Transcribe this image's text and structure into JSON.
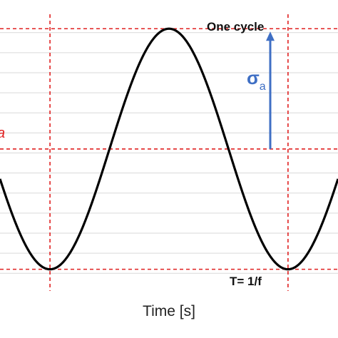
{
  "chart_data": {
    "type": "line",
    "title": "",
    "xlabel": "Time [s]",
    "ylabel": "",
    "grid": true,
    "x_unit": "cycle",
    "xlim": [
      -0.21,
      1.21
    ],
    "ylim": [
      -1.18,
      1.12
    ],
    "series": [
      {
        "style": "sine",
        "amplitude": 1.0,
        "mean": 0.0,
        "period": 1.0,
        "phase_of_peak": 0.5,
        "x_range": [
          -0.21,
          1.21
        ]
      }
    ],
    "reference_lines": {
      "horizontal": [
        1.0,
        0.0,
        -1.0
      ],
      "vertical": [
        0.0,
        1.0
      ]
    },
    "annotations": {
      "cycle": "One cycle",
      "period": "T= 1/f",
      "amplitude_symbol": "σ",
      "amplitude_subscript": "a",
      "left_clipped_text": "a"
    },
    "colors": {
      "curve": "#000000",
      "reference": "#e02020",
      "arrow": "#3f6fc4",
      "grid": "#d9d9d9"
    }
  }
}
